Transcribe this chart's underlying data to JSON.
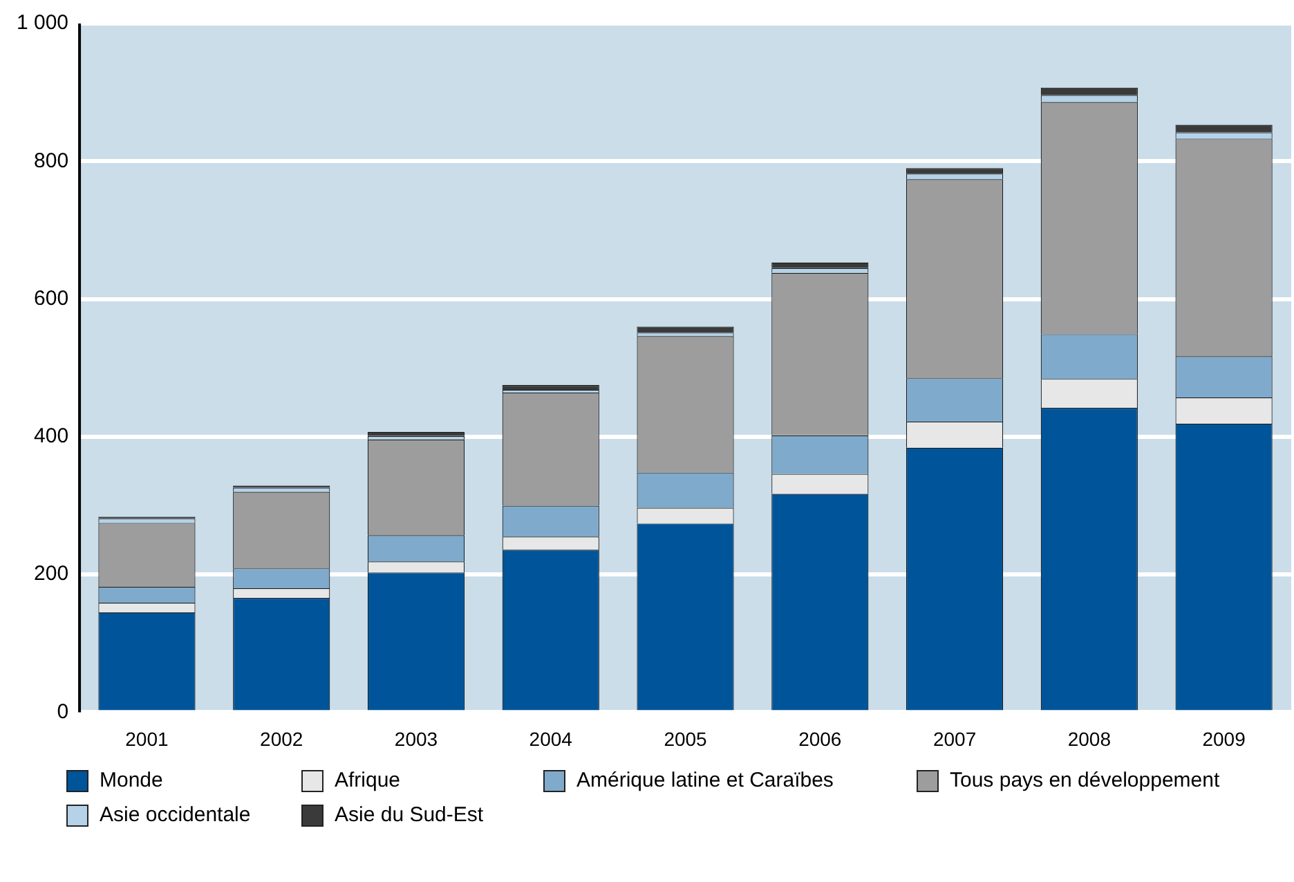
{
  "chart_data": {
    "type": "bar",
    "stacked": true,
    "categories": [
      "2001",
      "2002",
      "2003",
      "2004",
      "2005",
      "2006",
      "2007",
      "2008",
      "2009"
    ],
    "series": [
      {
        "name": "Monde",
        "color": "#00559a",
        "values": [
          145,
          166,
          203,
          236,
          274,
          317,
          384,
          442,
          419
        ]
      },
      {
        "name": "Afrique",
        "color": "#e6e7e6",
        "values": [
          14,
          14,
          16,
          19,
          23,
          29,
          38,
          42,
          38
        ]
      },
      {
        "name": "Amérique latine et Caraïbes",
        "color": "#7faacb",
        "values": [
          23,
          29,
          38,
          45,
          51,
          56,
          63,
          65,
          60
        ]
      },
      {
        "name": "Tous pays en développement",
        "color": "#9d9d9d",
        "values": [
          93,
          111,
          139,
          164,
          198,
          236,
          289,
          337,
          316
        ]
      },
      {
        "name": "Asie occidentale",
        "color": "#b5d2e8",
        "values": [
          6,
          6,
          5,
          4,
          5,
          7,
          8,
          10,
          9
        ]
      },
      {
        "name": "Asie du Sud-Est",
        "color": "#3a3a3a",
        "values": [
          3,
          3,
          6,
          7,
          9,
          8,
          8,
          11,
          11
        ]
      }
    ],
    "ylim": [
      0,
      1000
    ],
    "yticks": [
      0,
      200,
      400,
      600,
      800,
      {
        "value": 1000,
        "label": "1 000"
      }
    ],
    "grid": "y",
    "legend": "bottom"
  }
}
